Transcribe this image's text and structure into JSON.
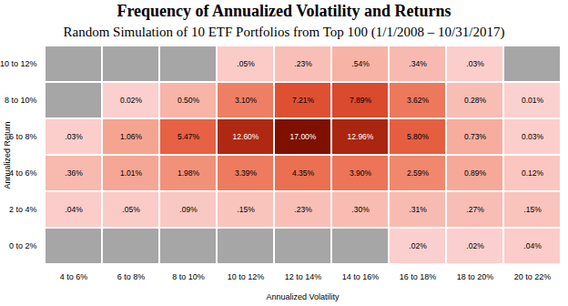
{
  "chart_data": {
    "type": "heatmap",
    "title": "Frequency of Annualized Volatility and Returns",
    "subtitle": "Random Simulation of 10 ETF Portfolios from Top 100 (1/1/2008 – 10/31/2017)",
    "x_label": "Annualized Volatility",
    "y_label": "Annualized Return",
    "x": [
      "4 to 6%",
      "6 to 8%",
      "8 to 10%",
      "10 to 12%",
      "12 to 14%",
      "14 to 16%",
      "16 to 18%",
      "18 to 20%",
      "20 to 22%"
    ],
    "y": [
      "10 to 12%",
      "8 to 10%",
      "6 to 8%",
      "4 to 6%",
      "2 to 4%",
      "0 to 2%"
    ],
    "values": [
      [
        null,
        null,
        null,
        0.05,
        0.23,
        0.54,
        0.34,
        0.03,
        null
      ],
      [
        null,
        0.02,
        0.5,
        3.1,
        7.21,
        7.89,
        3.62,
        0.28,
        0.01
      ],
      [
        0.03,
        1.06,
        5.47,
        12.6,
        17,
        12.96,
        5.8,
        0.73,
        0.03
      ],
      [
        0.36,
        1.01,
        1.98,
        3.39,
        4.35,
        3.9,
        2.59,
        0.89,
        0.12
      ],
      [
        0.04,
        0.05,
        0.09,
        0.15,
        0.23,
        0.3,
        0.31,
        0.27,
        0.15
      ],
      [
        null,
        null,
        null,
        null,
        null,
        null,
        0.02,
        0.02,
        0.04
      ]
    ],
    "value_labels": [
      [
        null,
        null,
        null,
        ".05%",
        ".23%",
        ".54%",
        ".34%",
        ".03%",
        null
      ],
      [
        null,
        "0.02%",
        "0.50%",
        "3.10%",
        "7.21%",
        "7.89%",
        "3.62%",
        "0.28%",
        "0.01%"
      ],
      [
        ".03%",
        "1.06%",
        "5.47%",
        "12.60%",
        "17.00%",
        "12.96%",
        "5.80%",
        "0.73%",
        "0.03%"
      ],
      [
        ".36%",
        "1.01%",
        "1.98%",
        "3.39%",
        "4.35%",
        "3.90%",
        "2.59%",
        "0.89%",
        "0.12%"
      ],
      [
        ".04%",
        ".05%",
        ".09%",
        ".15%",
        ".23%",
        ".30%",
        ".31%",
        ".27%",
        ".15%"
      ],
      [
        null,
        null,
        null,
        null,
        null,
        null,
        ".02%",
        ".02%",
        ".04%"
      ]
    ],
    "data_labels": true
  }
}
